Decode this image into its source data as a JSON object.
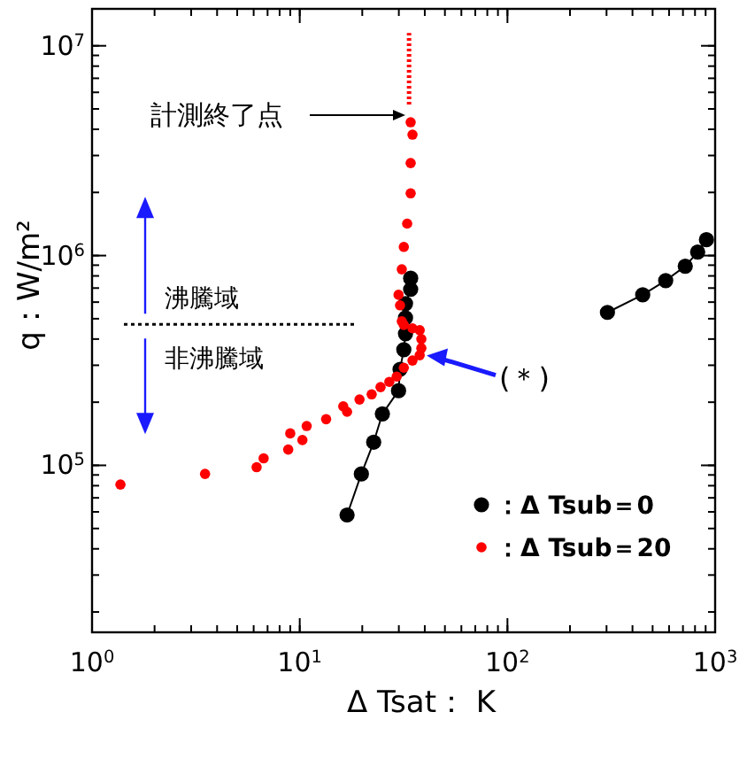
{
  "chart_data": {
    "type": "scatter",
    "xlabel": "Δ Tsat： K",
    "ylabel": "q：W/m²",
    "log": "xy",
    "xlim": [
      1,
      1000
    ],
    "ylim": [
      16000,
      15000000
    ],
    "xticks": [
      {
        "value": 1,
        "label": "10$^{0}$"
      },
      {
        "value": 10,
        "label": "10$^{1}$"
      },
      {
        "value": 100,
        "label": "10$^{2}$"
      },
      {
        "value": 1000,
        "label": "10$^{3}$"
      }
    ],
    "yticks": [
      {
        "value": 100000,
        "label": "10$^{5}$"
      },
      {
        "value": 1000000,
        "label": "10$^{6}$"
      },
      {
        "value": 10000000,
        "label": "10$^{7}$"
      }
    ],
    "grid": false,
    "legend": "bottom right",
    "series": [
      {
        "name": "：Δ Tsub＝0",
        "type": "line",
        "marker": "circle",
        "color": "#000000",
        "x": [
          16.9,
          19.8,
          22.7,
          25.0,
          29.9,
          30.4,
          31.7,
          32.3,
          32.3,
          32.3,
          34.2,
          34.2,
          300,
          303,
          448,
          578,
          718,
          824,
          908
        ],
        "values": [
          58000,
          91000,
          129000,
          176000,
          227000,
          287000,
          356000,
          424000,
          505000,
          590000,
          690000,
          780000,
          null,
          536000,
          650000,
          760000,
          890000,
          1040000,
          1190000
        ]
      },
      {
        "name": "：Δ Tsub＝20",
        "marker": "circle",
        "color": "#ff0000",
        "x": [
          1.37,
          3.5,
          6.2,
          6.7,
          8.8,
          9.0,
          10.3,
          10.8,
          13.4,
          16.2,
          16.9,
          19.4,
          22.2,
          24.5,
          27.0,
          29.3,
          31.7,
          34.9,
          37.8,
          38.5,
          38.5,
          37.8,
          34.9,
          31.7,
          31.0,
          30.4,
          29.9,
          31.0,
          31.7,
          32.9,
          34.2,
          34.2,
          34.9,
          34.2
        ],
        "values": [
          81000,
          91000,
          98000,
          108000,
          119000,
          142000,
          132000,
          154000,
          166000,
          191000,
          180000,
          206000,
          218000,
          236000,
          250000,
          265000,
          292000,
          316000,
          335000,
          362000,
          400000,
          441000,
          450000,
          467000,
          486000,
          579000,
          650000,
          860000,
          1100000,
          1420000,
          1980000,
          2760000,
          3770000,
          4320000
        ]
      },
      {
        "type": "line",
        "line_style": "dotted",
        "color": "#ff0000",
        "x": [
          33.6,
          33.6
        ],
        "values": [
          5250000,
          11500000
        ]
      }
    ],
    "ref_lines": [
      {
        "axis": "y",
        "value": 470000,
        "line_style": "dotted",
        "color": "#000000"
      }
    ],
    "annotations": [
      "計測終了点",
      {
        "text": "(＊)",
        "x": 38.5,
        "y": 340000
      },
      "沸騰域",
      "非沸騰域"
    ]
  }
}
